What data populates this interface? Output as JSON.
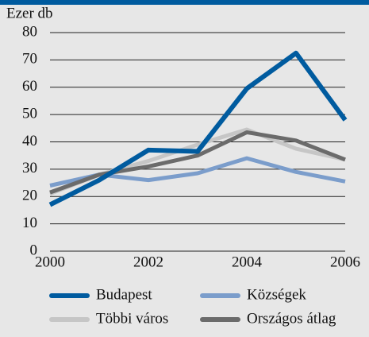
{
  "chart_data": {
    "type": "line",
    "title": "Ezer db",
    "x": [
      2000,
      2001,
      2002,
      2003,
      2004,
      2005,
      2006
    ],
    "xlim": [
      2000,
      2006
    ],
    "xticks": [
      2000,
      2002,
      2004,
      2006
    ],
    "ylim": [
      0,
      80
    ],
    "yticks": [
      0,
      10,
      20,
      30,
      40,
      50,
      60,
      70,
      80
    ],
    "grid": true,
    "series": [
      {
        "name": "Budapest",
        "color": "#005b9f",
        "values": [
          17,
          26,
          37,
          36.5,
          59.5,
          72.5,
          48
        ]
      },
      {
        "name": "Községek",
        "color": "#7b9dcb",
        "values": [
          24,
          28,
          26,
          28.5,
          34,
          29,
          25.5
        ]
      },
      {
        "name": "Többi város",
        "color": "#c6c6c6",
        "values": [
          21,
          28,
          33,
          39,
          44.5,
          37.5,
          33.5
        ]
      },
      {
        "name": "Országos átlag",
        "color": "#6b6b6b",
        "values": [
          21.5,
          28,
          31,
          35,
          43.5,
          40.5,
          33.5
        ]
      }
    ]
  }
}
